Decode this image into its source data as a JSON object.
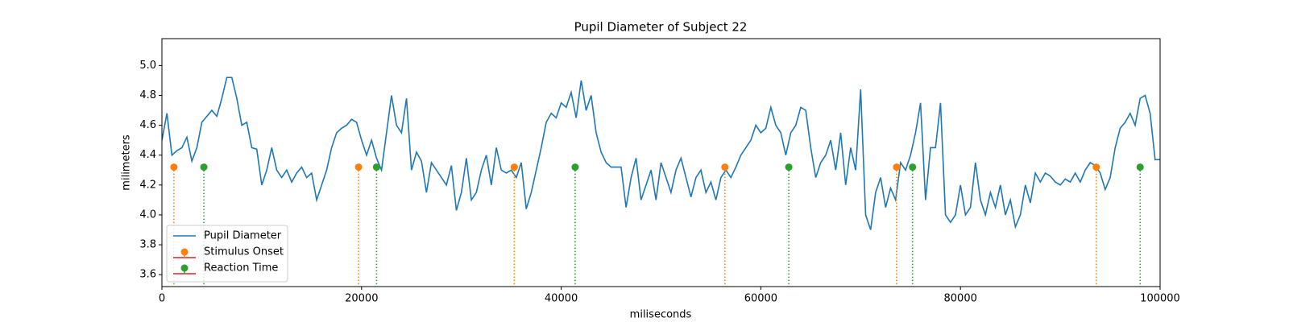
{
  "chart_data": {
    "type": "line",
    "title": "Pupil Diameter of Subject 22",
    "x_label": "miliseconds",
    "y_label": "milimeters",
    "xlim": [
      0,
      100000
    ],
    "ylim": [
      3.52,
      5.18
    ],
    "xticks": [
      0,
      20000,
      40000,
      60000,
      80000,
      100000
    ],
    "yticks": [
      3.6,
      3.8,
      {
        "value": 4,
        "label": "4.0"
      },
      4.2,
      4.4,
      4.6,
      4.8,
      {
        "value": 5,
        "label": "5.0"
      }
    ],
    "legend": "lower left",
    "stem_baseline_color": "#d62728",
    "series": [
      {
        "name": "Pupil Diameter",
        "kind": "line",
        "color": "#1f77b4",
        "x": [
          0,
          500,
          1000,
          1500,
          2000,
          2500,
          3000,
          3500,
          4000,
          4500,
          5000,
          5500,
          6000,
          6500,
          7000,
          7500,
          8000,
          8500,
          9000,
          9500,
          10000,
          10500,
          11000,
          11500,
          12000,
          12500,
          13000,
          13500,
          14000,
          14500,
          15000,
          15500,
          16000,
          16500,
          17000,
          17500,
          18000,
          18500,
          19000,
          19500,
          20000,
          20500,
          21000,
          21500,
          22000,
          22500,
          23000,
          23500,
          24000,
          24500,
          25000,
          25500,
          26000,
          26500,
          27000,
          27500,
          28000,
          28500,
          29000,
          29500,
          30000,
          30500,
          31000,
          31500,
          32000,
          32500,
          33000,
          33500,
          34000,
          34500,
          35000,
          35500,
          36000,
          36500,
          37000,
          37500,
          38000,
          38500,
          39000,
          39500,
          40000,
          40500,
          41000,
          41500,
          42000,
          42500,
          43000,
          43500,
          44000,
          44500,
          45000,
          45500,
          46000,
          46500,
          47000,
          47500,
          48000,
          48500,
          49000,
          49500,
          50000,
          50500,
          51000,
          51500,
          52000,
          52500,
          53000,
          53500,
          54000,
          54500,
          55000,
          55500,
          56000,
          56500,
          57000,
          57500,
          58000,
          58500,
          59000,
          59500,
          60000,
          60500,
          61000,
          61500,
          62000,
          62500,
          63000,
          63500,
          64000,
          64500,
          65000,
          65500,
          66000,
          66500,
          67000,
          67500,
          68000,
          68500,
          69000,
          69500,
          70000,
          70500,
          71000,
          71500,
          72000,
          72500,
          73000,
          73500,
          74000,
          74500,
          75000,
          75500,
          76000,
          76500,
          77000,
          77500,
          78000,
          78500,
          79000,
          79500,
          80000,
          80500,
          81000,
          81500,
          82000,
          82500,
          83000,
          83500,
          84000,
          84500,
          85000,
          85500,
          86000,
          86500,
          87000,
          87500,
          88000,
          88500,
          89000,
          89500,
          90000,
          90500,
          91000,
          91500,
          92000,
          92500,
          93000,
          93500,
          94000,
          94500,
          95000,
          95500,
          96000,
          96500,
          97000,
          97500,
          98000,
          98500,
          99000,
          99500,
          100000
        ],
        "values": [
          4.5,
          4.68,
          4.4,
          4.43,
          4.45,
          4.52,
          4.36,
          4.45,
          4.62,
          4.66,
          4.7,
          4.66,
          4.78,
          4.92,
          4.92,
          4.78,
          4.6,
          4.62,
          4.45,
          4.44,
          4.2,
          4.3,
          4.45,
          4.3,
          4.25,
          4.3,
          4.22,
          4.28,
          4.32,
          4.25,
          4.28,
          4.1,
          4.2,
          4.3,
          4.45,
          4.55,
          4.58,
          4.6,
          4.64,
          4.62,
          4.5,
          4.4,
          4.5,
          4.38,
          4.3,
          4.55,
          4.8,
          4.6,
          4.55,
          4.78,
          4.3,
          4.42,
          4.36,
          4.15,
          4.35,
          4.3,
          4.25,
          4.2,
          4.33,
          4.03,
          4.15,
          4.38,
          4.1,
          4.15,
          4.3,
          4.4,
          4.2,
          4.45,
          4.3,
          4.28,
          4.3,
          4.25,
          4.35,
          4.04,
          4.15,
          4.3,
          4.45,
          4.62,
          4.68,
          4.65,
          4.75,
          4.72,
          4.82,
          4.65,
          4.9,
          4.7,
          4.8,
          4.55,
          4.42,
          4.35,
          4.32,
          4.32,
          4.32,
          4.05,
          4.25,
          4.38,
          4.1,
          4.2,
          4.3,
          4.1,
          4.35,
          4.25,
          4.15,
          4.3,
          4.38,
          4.25,
          4.12,
          4.25,
          4.3,
          4.15,
          4.22,
          4.1,
          4.25,
          4.3,
          4.25,
          4.32,
          4.4,
          4.45,
          4.5,
          4.6,
          4.55,
          4.58,
          4.72,
          4.6,
          4.55,
          4.4,
          4.55,
          4.6,
          4.72,
          4.7,
          4.45,
          4.25,
          4.35,
          4.4,
          4.5,
          4.3,
          4.55,
          4.2,
          4.45,
          4.3,
          4.84,
          4.0,
          3.9,
          4.15,
          4.25,
          4.05,
          4.18,
          4.1,
          4.35,
          4.3,
          4.4,
          4.55,
          4.75,
          4.1,
          4.45,
          4.45,
          4.75,
          4.0,
          3.95,
          4.0,
          4.2,
          4.0,
          4.05,
          4.35,
          4.1,
          4.0,
          4.15,
          4.05,
          4.2,
          4.0,
          4.1,
          3.92,
          4.0,
          4.2,
          4.08,
          4.28,
          4.22,
          4.28,
          4.26,
          4.22,
          4.2,
          4.24,
          4.22,
          4.28,
          4.22,
          4.3,
          4.35,
          4.33,
          4.28,
          4.17,
          4.25,
          4.45,
          4.58,
          4.62,
          4.68,
          4.6,
          4.78,
          4.8,
          4.68,
          4.37,
          4.37
        ]
      },
      {
        "name": "Stimulus Onset",
        "kind": "stem",
        "color": "#ff7f0e",
        "x": [
          1200,
          19700,
          35300,
          56400,
          73600,
          93600
        ],
        "values": [
          4.32,
          4.32,
          4.32,
          4.32,
          4.32,
          4.32
        ]
      },
      {
        "name": "Reaction Time",
        "kind": "stem",
        "color": "#2ca02c",
        "x": [
          4200,
          21500,
          41400,
          62800,
          75200,
          98000
        ],
        "values": [
          4.32,
          4.32,
          4.32,
          4.32,
          4.32,
          4.32
        ]
      }
    ]
  }
}
